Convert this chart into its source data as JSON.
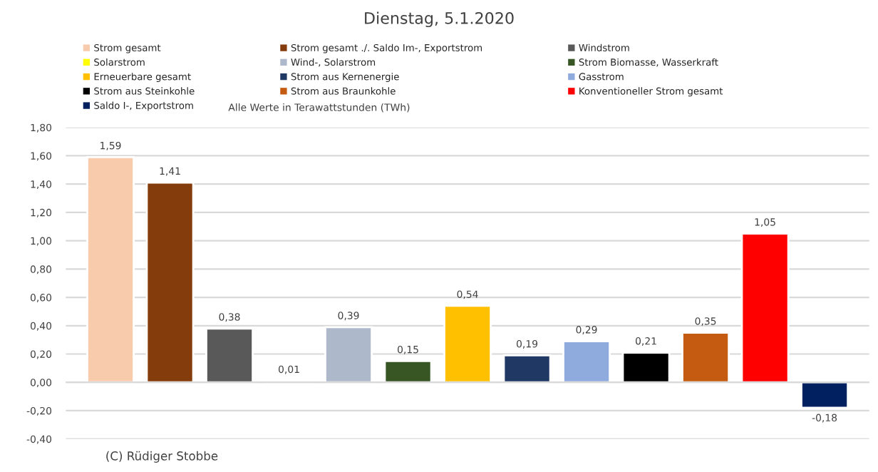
{
  "chart_data": {
    "type": "bar",
    "title": "Dienstag, 5.1.2020",
    "categories": [
      null,
      null,
      null,
      null,
      null,
      null,
      null,
      null,
      null,
      null,
      null,
      null,
      null
    ],
    "series": [
      {
        "name": "Strom gesamt",
        "color": "#f8cbad",
        "values": [
          1.59,
          null,
          null,
          null,
          null,
          null,
          null,
          null,
          null,
          null,
          null,
          null,
          null
        ],
        "value_labels": [
          "1,59",
          null,
          null,
          null,
          null,
          null,
          null,
          null,
          null,
          null,
          null,
          null,
          null
        ]
      },
      {
        "name": "Strom gesamt ./. Saldo Im-, Exportstrom",
        "color": "#843c0c",
        "values": [
          null,
          1.41,
          null,
          null,
          null,
          null,
          null,
          null,
          null,
          null,
          null,
          null,
          null
        ],
        "value_labels": [
          null,
          "1,41",
          null,
          null,
          null,
          null,
          null,
          null,
          null,
          null,
          null,
          null,
          null
        ]
      },
      {
        "name": "Windstrom",
        "color": "#595959",
        "values": [
          null,
          null,
          0.38,
          null,
          null,
          null,
          null,
          null,
          null,
          null,
          null,
          null,
          null
        ],
        "value_labels": [
          null,
          null,
          "0,38",
          null,
          null,
          null,
          null,
          null,
          null,
          null,
          null,
          null,
          null
        ]
      },
      {
        "name": "Solarstrom",
        "color": "#ffff00",
        "values": [
          null,
          null,
          null,
          0.01,
          null,
          null,
          null,
          null,
          null,
          null,
          null,
          null,
          null
        ],
        "value_labels": [
          null,
          null,
          null,
          "0,01",
          null,
          null,
          null,
          null,
          null,
          null,
          null,
          null,
          null
        ]
      },
      {
        "name": "Wind-, Solarstrom",
        "color": "#adb9ca",
        "values": [
          null,
          null,
          null,
          null,
          0.39,
          null,
          null,
          null,
          null,
          null,
          null,
          null,
          null
        ],
        "value_labels": [
          null,
          null,
          null,
          null,
          "0,39",
          null,
          null,
          null,
          null,
          null,
          null,
          null,
          null
        ]
      },
      {
        "name": "Strom Biomasse, Wasserkraft",
        "color": "#375623",
        "values": [
          null,
          null,
          null,
          null,
          null,
          0.15,
          null,
          null,
          null,
          null,
          null,
          null,
          null
        ],
        "value_labels": [
          null,
          null,
          null,
          null,
          null,
          "0,15",
          null,
          null,
          null,
          null,
          null,
          null,
          null
        ]
      },
      {
        "name": "Erneuerbare gesamt",
        "color": "#ffc000",
        "values": [
          null,
          null,
          null,
          null,
          null,
          null,
          0.54,
          null,
          null,
          null,
          null,
          null,
          null
        ],
        "value_labels": [
          null,
          null,
          null,
          null,
          null,
          null,
          "0,54",
          null,
          null,
          null,
          null,
          null,
          null
        ]
      },
      {
        "name": "Strom aus Kernenergie",
        "color": "#1f3864",
        "values": [
          null,
          null,
          null,
          null,
          null,
          null,
          null,
          0.19,
          null,
          null,
          null,
          null,
          null
        ],
        "value_labels": [
          null,
          null,
          null,
          null,
          null,
          null,
          null,
          "0,19",
          null,
          null,
          null,
          null,
          null
        ]
      },
      {
        "name": "Gasstrom",
        "color": "#8faadc",
        "values": [
          null,
          null,
          null,
          null,
          null,
          null,
          null,
          null,
          0.29,
          null,
          null,
          null,
          null
        ],
        "value_labels": [
          null,
          null,
          null,
          null,
          null,
          null,
          null,
          null,
          "0,29",
          null,
          null,
          null,
          null
        ]
      },
      {
        "name": "Strom aus Steinkohle",
        "color": "#000000",
        "values": [
          null,
          null,
          null,
          null,
          null,
          null,
          null,
          null,
          null,
          0.21,
          null,
          null,
          null
        ],
        "value_labels": [
          null,
          null,
          null,
          null,
          null,
          null,
          null,
          null,
          null,
          "0,21",
          null,
          null,
          null
        ]
      },
      {
        "name": "Strom aus Braunkohle",
        "color": "#c55a11",
        "values": [
          null,
          null,
          null,
          null,
          null,
          null,
          null,
          null,
          null,
          null,
          0.35,
          null,
          null
        ],
        "value_labels": [
          null,
          null,
          null,
          null,
          null,
          null,
          null,
          null,
          null,
          null,
          "0,35",
          null,
          null
        ]
      },
      {
        "name": "Konventioneller Strom gesamt",
        "color": "#ff0000",
        "values": [
          null,
          null,
          null,
          null,
          null,
          null,
          null,
          null,
          null,
          null,
          null,
          1.05,
          null
        ],
        "value_labels": [
          null,
          null,
          null,
          null,
          null,
          null,
          null,
          null,
          null,
          null,
          null,
          "1,05",
          null
        ]
      },
      {
        "name": "Saldo I-, Exportstrom",
        "color": "#002060",
        "values": [
          null,
          null,
          null,
          null,
          null,
          null,
          null,
          null,
          null,
          null,
          null,
          null,
          -0.18
        ],
        "value_labels": [
          null,
          null,
          null,
          null,
          null,
          null,
          null,
          null,
          null,
          null,
          null,
          null,
          "-0,18"
        ]
      }
    ],
    "ylim": [
      -0.4,
      1.8
    ],
    "yticks": [
      {
        "value": -0.4,
        "label": "-0,40"
      },
      {
        "value": -0.2,
        "label": "-0,20"
      },
      {
        "value": 0,
        "label": "0,00"
      },
      {
        "value": 0.2,
        "label": "0,20"
      },
      {
        "value": 0.4,
        "label": "0,40"
      },
      {
        "value": 0.6,
        "label": "0,60"
      },
      {
        "value": 0.8,
        "label": "0,80"
      },
      {
        "value": 1.0,
        "label": "1,00"
      },
      {
        "value": 1.2,
        "label": "1,20"
      },
      {
        "value": 1.4,
        "label": "1,40"
      },
      {
        "value": 1.6,
        "label": "1,60"
      },
      {
        "value": 1.8,
        "label": "1,80"
      }
    ],
    "grid": "y",
    "legend": "top",
    "annotations": [
      "Alle Werte in Terawattstunden (TWh)",
      "(C) Rüdiger Stobbe"
    ]
  }
}
